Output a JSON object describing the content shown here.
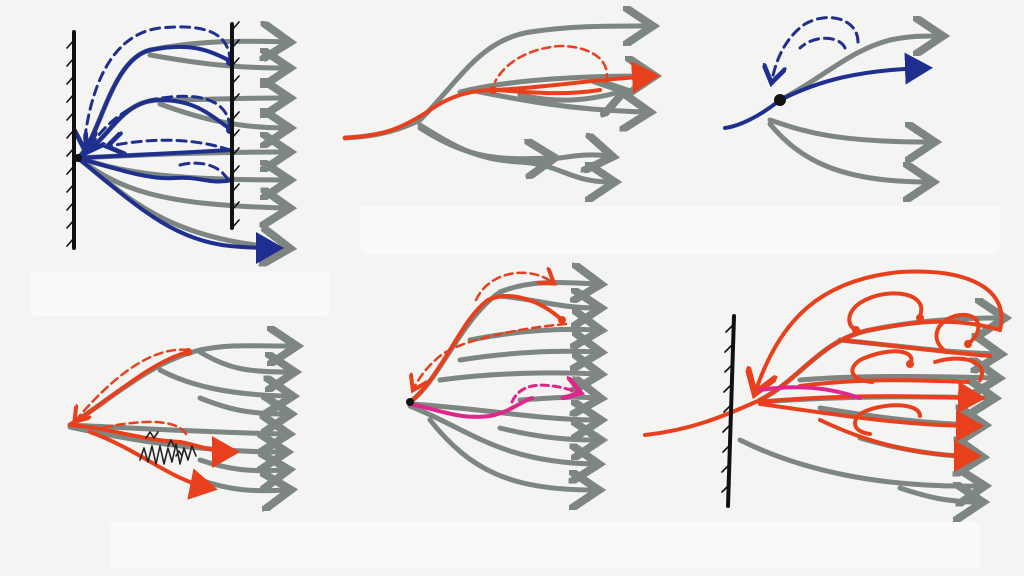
{
  "colors": {
    "background": "#f4f4f2",
    "gray_branch": "#7e8682",
    "blue_path": "#1f2f8f",
    "red_path": "#e8401c",
    "pink_path": "#e0268a",
    "wall": "#111111"
  },
  "panels": [
    {
      "name": "top-left",
      "style": "blue",
      "has_walls": "left-and-right"
    },
    {
      "name": "top-middle",
      "style": "red"
    },
    {
      "name": "top-right",
      "style": "blue"
    },
    {
      "name": "bottom-left",
      "style": "red",
      "has_scribble": true
    },
    {
      "name": "bottom-middle",
      "style": "red-and-pink"
    },
    {
      "name": "bottom-right",
      "style": "red",
      "has_walls": "left"
    }
  ]
}
